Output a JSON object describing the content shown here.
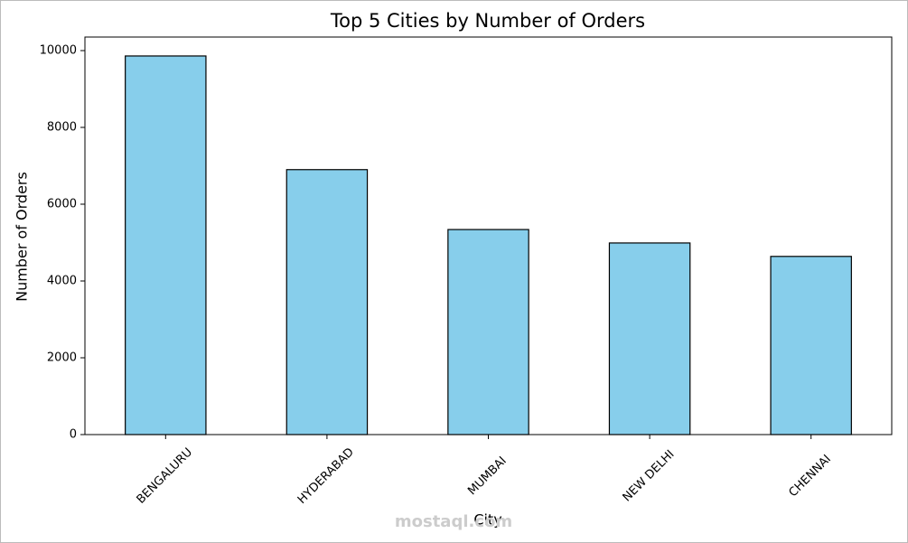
{
  "chart_data": {
    "type": "bar",
    "title": "Top 5 Cities by Number of Orders",
    "x_label": "City",
    "y_label": "Number of Orders",
    "categories": [
      "BENGALURU",
      "HYDERABAD",
      "MUMBAI",
      "NEW DELHI",
      "CHENNAI"
    ],
    "values": [
      9860,
      6900,
      5340,
      4990,
      4640
    ],
    "color": "#87ceeb",
    "edge_color": "#000000",
    "ylim": [
      0,
      10353
    ],
    "yticks": [
      0,
      2000,
      4000,
      6000,
      8000,
      10000
    ],
    "watermark": "mostaql.com"
  }
}
